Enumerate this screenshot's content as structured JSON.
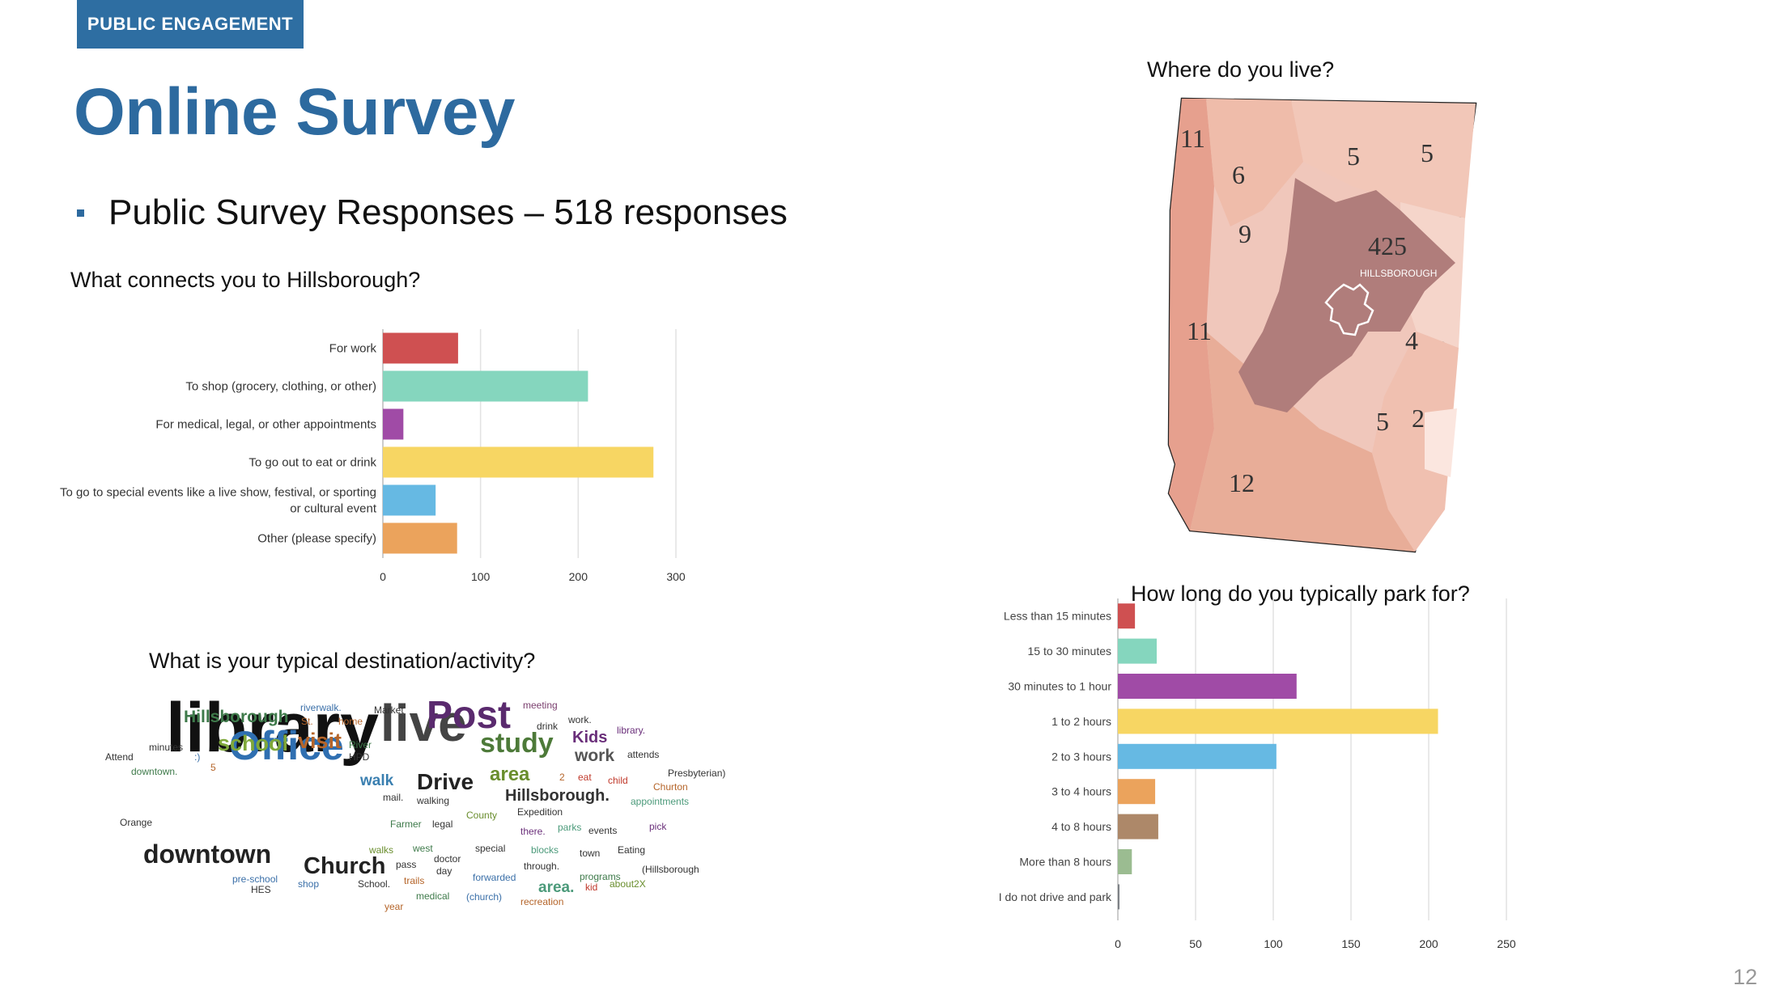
{
  "header": {
    "section_tag": "PUBLIC ENGAGEMENT",
    "title": "Online Survey",
    "bullet": "Public Survey Responses – 518 responses"
  },
  "page_number": "12",
  "colors": {
    "brand": "#2d6a9f",
    "red": "#cf5051",
    "teal": "#85d6be",
    "purple": "#a04ba6",
    "yellow": "#f7d663",
    "blue": "#66b9e3",
    "orange": "#eba35c",
    "brown": "#ad8869",
    "green": "#9bbc91",
    "gray": "#7e8287"
  },
  "chart_data": [
    {
      "type": "bar",
      "orientation": "horizontal",
      "title": "What connects you to Hillsborough?",
      "categories": [
        "For work",
        "To shop (grocery, clothing, or other)",
        "For medical, legal, or other appointments",
        "To go out to eat or drink",
        "To go to special events like a live show, festival, or sporting or cultural event",
        "Other (please specify)"
      ],
      "category_lines": [
        [
          "For work"
        ],
        [
          "To shop (grocery, clothing, or other)"
        ],
        [
          "For medical, legal, or other appointments"
        ],
        [
          "To go out to eat or drink"
        ],
        [
          "To go to special events like a live show, festival, or sporting",
          "or cultural event"
        ],
        [
          "Other (please specify)"
        ]
      ],
      "values": [
        77,
        210,
        21,
        277,
        54,
        76
      ],
      "bar_colors": [
        "#cf5051",
        "#85d6be",
        "#a04ba6",
        "#f7d663",
        "#66b9e3",
        "#eba35c"
      ],
      "xlim": [
        0,
        300
      ],
      "xticks": [
        0,
        100,
        200,
        300
      ],
      "grid": true
    },
    {
      "type": "bar",
      "orientation": "horizontal",
      "title": "How long do you typically park for?",
      "categories": [
        "Less than 15 minutes",
        "15 to 30 minutes",
        "30 minutes to 1 hour",
        "1 to 2 hours",
        "2 to 3 hours",
        "3 to 4 hours",
        "4 to 8 hours",
        "More than 8 hours",
        "I do not drive and park"
      ],
      "values": [
        11,
        25,
        115,
        206,
        102,
        24,
        26,
        9,
        1
      ],
      "bar_colors": [
        "#cf5051",
        "#85d6be",
        "#a04ba6",
        "#f7d663",
        "#66b9e3",
        "#eba35c",
        "#ad8869",
        "#9bbc91",
        "#7e8287"
      ],
      "xlim": [
        0,
        250
      ],
      "xticks": [
        0,
        50,
        100,
        150,
        200,
        250
      ],
      "grid": true
    }
  ],
  "map": {
    "title": "Where do you live?",
    "town_label": "HILLSBOROUGH",
    "region_counts": [
      "11",
      "6",
      "5",
      "5",
      "9",
      "425",
      "11",
      "4",
      "5",
      "2",
      "12"
    ]
  },
  "wordcloud": {
    "title": "What is your typical destination/activity?",
    "words": [
      {
        "text": "library",
        "color": "#111111"
      },
      {
        "text": "live",
        "color": "#444444"
      },
      {
        "text": "Office",
        "color": "#2f6fb1"
      },
      {
        "text": "Post",
        "color": "#5a2a6e"
      },
      {
        "text": "downtown",
        "color": "#222222"
      },
      {
        "text": "study",
        "color": "#4d7a39"
      },
      {
        "text": "Church",
        "color": "#222222"
      },
      {
        "text": "Drive",
        "color": "#222222"
      },
      {
        "text": "Hillsborough",
        "color": "#3e7a4a"
      },
      {
        "text": "school",
        "color": "#7fa83a"
      },
      {
        "text": "visit",
        "color": "#b5652a"
      },
      {
        "text": "area",
        "color": "#6a8e2e"
      },
      {
        "text": "Kids",
        "color": "#6a2f7a"
      },
      {
        "text": "work",
        "color": "#555555"
      },
      {
        "text": "walk",
        "color": "#3a7fb0"
      },
      {
        "text": "Hillsborough.",
        "color": "#333333"
      },
      {
        "text": "area.",
        "color": "#4b9a7a"
      },
      {
        "text": "riverwalk.",
        "color": "#3a6fa8"
      },
      {
        "text": "St.",
        "color": "#b5652a"
      },
      {
        "text": "home",
        "color": "#b5652a"
      },
      {
        "text": "Market",
        "color": "#333333"
      },
      {
        "text": "meeting",
        "color": "#7a3f6e"
      },
      {
        "text": "drink",
        "color": "#333333"
      },
      {
        "text": "work.",
        "color": "#333333"
      },
      {
        "text": "library.",
        "color": "#6a2f7a"
      },
      {
        "text": "minutes",
        "color": "#333333"
      },
      {
        "text": "Attend",
        "color": "#333333"
      },
      {
        "text": ":)",
        "color": "#3a6fa8"
      },
      {
        "text": "River",
        "color": "#3e7a4a"
      },
      {
        "text": "HPD",
        "color": "#333333"
      },
      {
        "text": "attends",
        "color": "#333333"
      },
      {
        "text": "downtown.",
        "color": "#3e7a4a"
      },
      {
        "text": "5",
        "color": "#b5652a"
      },
      {
        "text": "2",
        "color": "#b5652a"
      },
      {
        "text": "eat",
        "color": "#c0392b"
      },
      {
        "text": "child",
        "color": "#c0392b"
      },
      {
        "text": "Presbyterian)",
        "color": "#333333"
      },
      {
        "text": "Churton",
        "color": "#b5652a"
      },
      {
        "text": "mail.",
        "color": "#333333"
      },
      {
        "text": "walking",
        "color": "#333333"
      },
      {
        "text": "County",
        "color": "#6a8e2e"
      },
      {
        "text": "Expedition",
        "color": "#333333"
      },
      {
        "text": "appointments",
        "color": "#4b9a7a"
      },
      {
        "text": "Orange",
        "color": "#333333"
      },
      {
        "text": "Farmer",
        "color": "#3e7a4a"
      },
      {
        "text": "legal",
        "color": "#333333"
      },
      {
        "text": "there.",
        "color": "#6a2f7a"
      },
      {
        "text": "parks",
        "color": "#4b9a7a"
      },
      {
        "text": "events",
        "color": "#333333"
      },
      {
        "text": "pick",
        "color": "#6a2f7a"
      },
      {
        "text": "walks",
        "color": "#6a8e2e"
      },
      {
        "text": "west",
        "color": "#3e7a4a"
      },
      {
        "text": "special",
        "color": "#333333"
      },
      {
        "text": "blocks",
        "color": "#4b9a7a"
      },
      {
        "text": "town",
        "color": "#333333"
      },
      {
        "text": "Eating",
        "color": "#333333"
      },
      {
        "text": "doctor",
        "color": "#333333"
      },
      {
        "text": "pass",
        "color": "#333333"
      },
      {
        "text": "day",
        "color": "#333333"
      },
      {
        "text": "through.",
        "color": "#333333"
      },
      {
        "text": "programs",
        "color": "#3e7a4a"
      },
      {
        "text": "(Hillsborough",
        "color": "#333333"
      },
      {
        "text": "pre-school",
        "color": "#3a6fa8"
      },
      {
        "text": "HES",
        "color": "#333333"
      },
      {
        "text": "shop",
        "color": "#3a6fa8"
      },
      {
        "text": "School.",
        "color": "#333333"
      },
      {
        "text": "trails",
        "color": "#b5652a"
      },
      {
        "text": "forwarded",
        "color": "#3a6fa8"
      },
      {
        "text": "kid",
        "color": "#c0392b"
      },
      {
        "text": "about2X",
        "color": "#6a8e2e"
      },
      {
        "text": "year",
        "color": "#b5652a"
      },
      {
        "text": "medical",
        "color": "#3e7a4a"
      },
      {
        "text": "(church)",
        "color": "#3a6fa8"
      },
      {
        "text": "recreation",
        "color": "#b5652a"
      }
    ]
  }
}
